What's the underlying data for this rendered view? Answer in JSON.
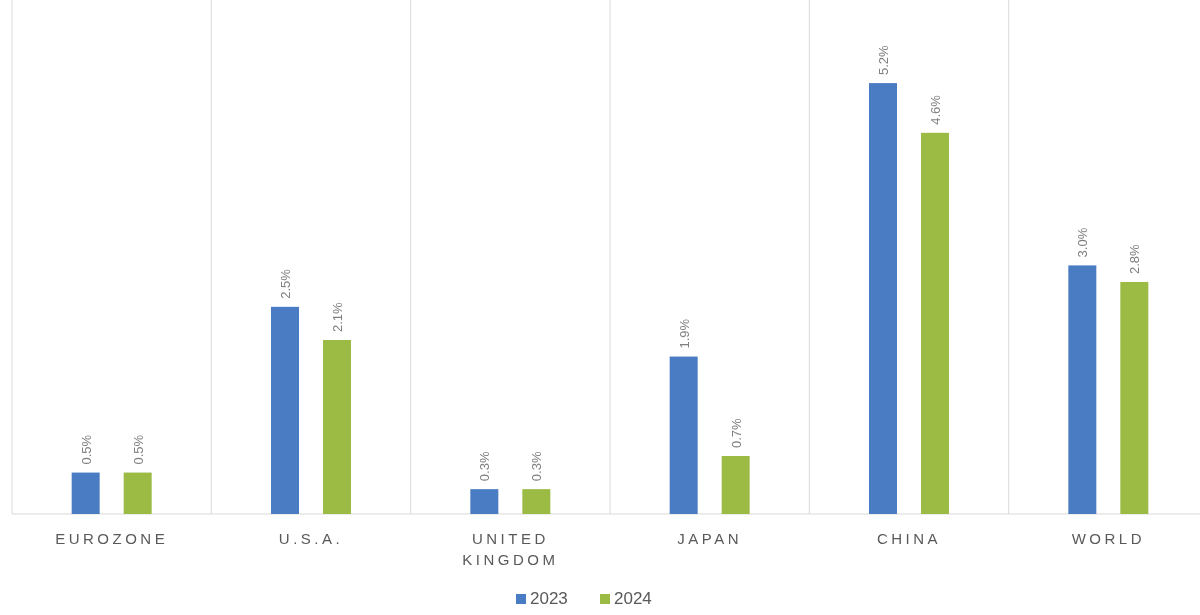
{
  "chart_data": {
    "type": "bar",
    "categories": [
      "EUROZONE",
      "U.S.A.",
      "UNITED KINGDOM",
      "JAPAN",
      "CHINA",
      "WORLD"
    ],
    "series": [
      {
        "name": "2023",
        "color": "#4a7cc4",
        "values": [
          0.5,
          2.5,
          0.3,
          1.9,
          5.2,
          3.0
        ],
        "value_labels": [
          "0.5%",
          "2.5%",
          "0.3%",
          "1.9%",
          "5.2%",
          "3.0%"
        ]
      },
      {
        "name": "2024",
        "color": "#9bbb45",
        "values": [
          0.5,
          2.1,
          0.3,
          0.7,
          4.6,
          2.8
        ],
        "value_labels": [
          "0.5%",
          "2.1%",
          "0.3%",
          "0.7%",
          "4.6%",
          "2.8%"
        ]
      }
    ],
    "grid": "x",
    "legend": "bottom"
  }
}
